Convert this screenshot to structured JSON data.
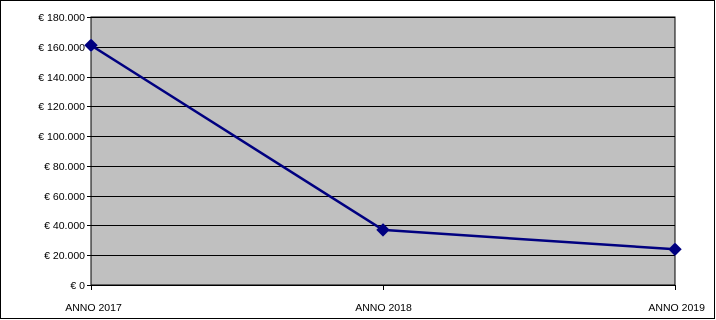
{
  "chart_data": {
    "type": "line",
    "categories": [
      "ANNO 2017",
      "ANNO 2018",
      "ANNO 2019"
    ],
    "series": [
      {
        "values": [
          161000,
          37000,
          24000
        ]
      }
    ],
    "y_ticks": [
      0,
      20000,
      40000,
      60000,
      80000,
      100000,
      120000,
      140000,
      160000,
      180000
    ],
    "y_tick_labels": [
      "€ 0",
      "€ 20.000",
      "€ 40.000",
      "€ 60.000",
      "€ 80.000",
      "€ 100.000",
      "€ 120.000",
      "€ 140.000",
      "€ 160.000",
      "€ 180.000"
    ],
    "ylim": [
      0,
      180000
    ],
    "grid": true,
    "legend": "none",
    "title": "",
    "xlabel": "",
    "ylabel": "",
    "colors": {
      "plot_background": "#c0c0c0",
      "line": "#000080",
      "marker": "#000080",
      "grid": "#000000"
    }
  }
}
